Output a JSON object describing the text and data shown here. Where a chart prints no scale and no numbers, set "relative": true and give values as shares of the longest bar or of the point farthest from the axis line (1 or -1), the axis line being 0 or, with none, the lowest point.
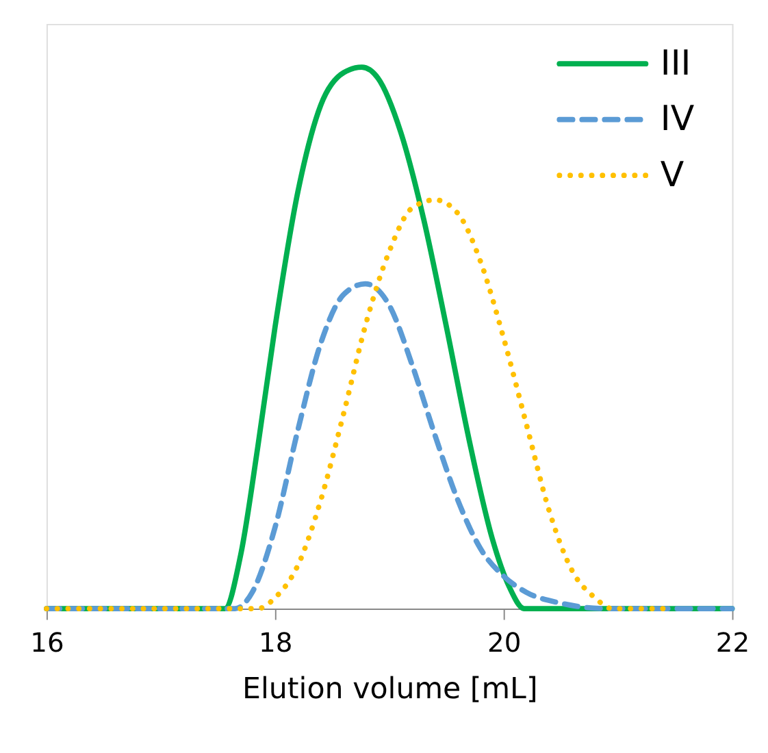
{
  "chart_data": {
    "type": "line",
    "xlabel": "Elution volume [mL]",
    "xlim": [
      16,
      22
    ],
    "xticks": [
      16,
      18,
      20,
      22
    ],
    "relative": true,
    "grid": false,
    "legend": "top right",
    "series": [
      {
        "name": "III",
        "color": "#00b050",
        "line_style": "solid",
        "x": [
          16,
          17.56,
          17.7,
          17.85,
          18.0,
          18.2,
          18.4,
          18.6,
          18.76,
          18.9,
          19.1,
          19.3,
          19.5,
          19.7,
          19.9,
          20.05,
          20.18,
          22
        ],
        "values": [
          0,
          0,
          0.1,
          0.3,
          0.52,
          0.77,
          0.93,
          0.99,
          1.0,
          0.98,
          0.88,
          0.72,
          0.52,
          0.31,
          0.13,
          0.04,
          0,
          0
        ]
      },
      {
        "name": "IV",
        "color": "#5b9bd5",
        "line_style": "dashed",
        "x": [
          16,
          17.65,
          17.8,
          18.0,
          18.2,
          18.4,
          18.6,
          18.79,
          19.0,
          19.2,
          19.4,
          19.6,
          19.8,
          20.0,
          20.2,
          20.5,
          20.9,
          22
        ],
        "values": [
          0,
          0,
          0.03,
          0.15,
          0.33,
          0.49,
          0.58,
          0.6,
          0.56,
          0.45,
          0.32,
          0.2,
          0.11,
          0.06,
          0.03,
          0.01,
          0,
          0
        ]
      },
      {
        "name": "V",
        "color": "#ffc000",
        "line_style": "dotted",
        "x": [
          16,
          17.85,
          18.0,
          18.2,
          18.4,
          18.6,
          18.8,
          19.0,
          19.2,
          19.4,
          19.6,
          19.8,
          20.0,
          20.2,
          20.4,
          20.6,
          20.8,
          20.95,
          21.4
        ],
        "values": [
          0,
          0,
          0.02,
          0.08,
          0.2,
          0.36,
          0.53,
          0.66,
          0.74,
          0.755,
          0.73,
          0.64,
          0.5,
          0.34,
          0.18,
          0.07,
          0.02,
          0,
          0
        ]
      }
    ]
  }
}
